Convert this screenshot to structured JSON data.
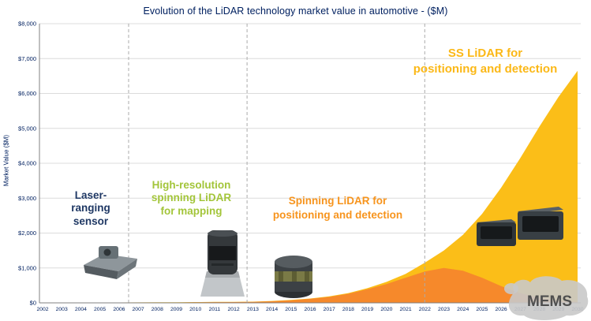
{
  "watermark": "MEMS",
  "colors": {
    "title": "#002060",
    "axis_text": "#002060",
    "axis_line": "#808080",
    "gridline": "#dcdcdc",
    "divider": "#ababab",
    "ss_area": "#FBBE18",
    "spinning_area": "#F6892B"
  },
  "annotations": [
    {
      "text": "Laser-\nranging\nsensor",
      "color": "#1F3864"
    },
    {
      "text": "High-resolution\nspinning LiDAR\nfor mapping",
      "color": "#A3C53A"
    },
    {
      "text": "Spinning LiDAR for\npositioning and detection",
      "color": "#F7941D"
    },
    {
      "text": "SS LiDAR for\npositioning and detection",
      "color": "#FBB817"
    }
  ],
  "chart_data": {
    "type": "area",
    "title": "Evolution of the LiDAR technology market value in automotive - ($M)",
    "ylabel": "Market Value ($M)",
    "xlabel": "",
    "grid": "horizontal",
    "legend": "none",
    "ylim": [
      0,
      8000
    ],
    "y_tick_values": [
      0,
      1000,
      2000,
      3000,
      4000,
      5000,
      6000,
      7000,
      8000
    ],
    "y_tick_labels": [
      "$0",
      "$1,000",
      "$2,000",
      "$3,000",
      "$4,000",
      "$5,000",
      "$6,000",
      "$7,000",
      "$8,000"
    ],
    "x": [
      2002,
      2003,
      2004,
      2005,
      2006,
      2007,
      2008,
      2009,
      2010,
      2011,
      2012,
      2013,
      2014,
      2015,
      2016,
      2017,
      2018,
      2019,
      2020,
      2021,
      2022,
      2023,
      2024,
      2025,
      2026,
      2027,
      2028,
      2029,
      2030
    ],
    "x_labels": [
      "2002",
      "2003",
      "2004",
      "2005",
      "2006",
      "2007",
      "2008",
      "2009",
      "2010",
      "2011",
      "2012",
      "2013",
      "2014",
      "2015",
      "2016",
      "2017",
      "2018",
      "2019",
      "2020",
      "2021",
      "2022",
      "2023",
      "2024",
      "2025",
      "2026",
      "2027",
      "2028",
      "2029",
      "2030"
    ],
    "era_dividers_x": [
      2006.5,
      2012.7,
      2022
    ],
    "series": [
      {
        "name": "Total LiDAR market / SS LiDAR for positioning and detection",
        "color": "#FBBE18",
        "values": [
          5,
          6,
          8,
          10,
          12,
          14,
          16,
          18,
          22,
          26,
          28,
          35,
          55,
          85,
          125,
          185,
          280,
          420,
          600,
          830,
          1150,
          1500,
          1950,
          2550,
          3300,
          4150,
          5050,
          5900,
          6650
        ]
      },
      {
        "name": "Spinning LiDAR for positioning and detection",
        "color": "#F6892B",
        "values": [
          0,
          0,
          0,
          0,
          0,
          0,
          8,
          10,
          15,
          20,
          22,
          28,
          45,
          75,
          115,
          170,
          260,
          390,
          540,
          720,
          900,
          1000,
          920,
          720,
          480,
          280,
          140,
          60,
          25
        ]
      }
    ]
  }
}
